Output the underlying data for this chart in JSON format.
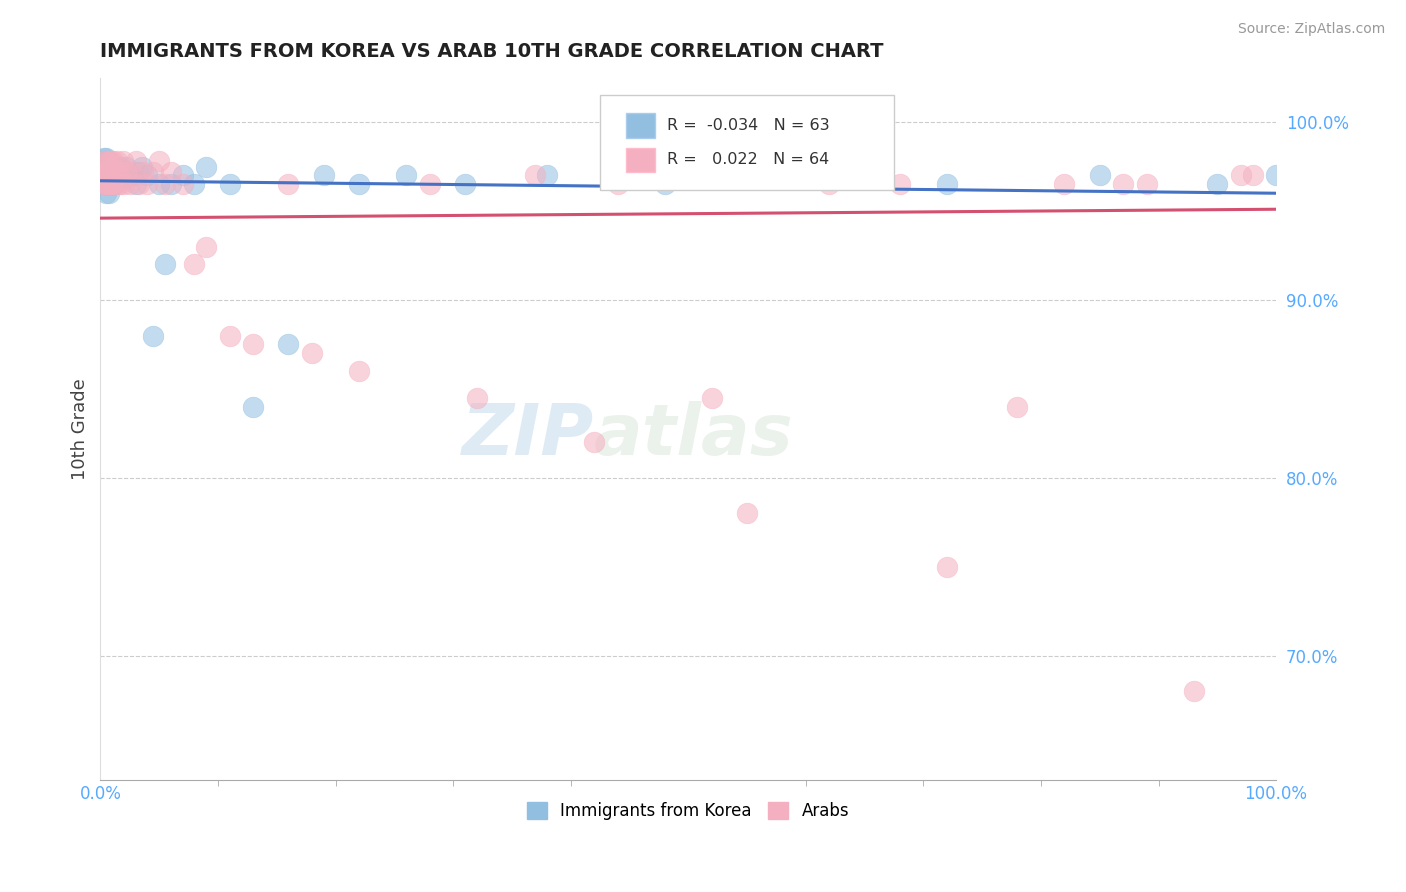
{
  "title": "IMMIGRANTS FROM KOREA VS ARAB 10TH GRADE CORRELATION CHART",
  "source": "Source: ZipAtlas.com",
  "ylabel": "10th Grade",
  "xlim": [
    0,
    1
  ],
  "ylim": [
    0.63,
    1.025
  ],
  "yticks": [
    0.7,
    0.8,
    0.9,
    1.0
  ],
  "ytick_labels": [
    "70.0%",
    "80.0%",
    "90.0%",
    "100.0%"
  ],
  "watermark_zip": "ZIP",
  "watermark_atlas": "atlas",
  "korea_R": -0.034,
  "korea_N": 63,
  "arab_R": 0.022,
  "arab_N": 64,
  "korea_color": "#92bfe0",
  "arab_color": "#f4b0c0",
  "korea_line_color": "#4472c4",
  "arab_line_color": "#d45070",
  "korea_line_start_y": 0.967,
  "korea_line_end_y": 0.96,
  "arab_line_start_y": 0.946,
  "arab_line_end_y": 0.951,
  "korea_x": [
    0.002,
    0.003,
    0.003,
    0.004,
    0.004,
    0.004,
    0.005,
    0.005,
    0.005,
    0.005,
    0.005,
    0.006,
    0.006,
    0.006,
    0.007,
    0.007,
    0.007,
    0.008,
    0.008,
    0.009,
    0.009,
    0.01,
    0.01,
    0.011,
    0.011,
    0.012,
    0.013,
    0.013,
    0.014,
    0.015,
    0.016,
    0.017,
    0.018,
    0.019,
    0.02,
    0.022,
    0.025,
    0.028,
    0.03,
    0.032,
    0.035,
    0.04,
    0.045,
    0.05,
    0.055,
    0.06,
    0.07,
    0.08,
    0.09,
    0.11,
    0.13,
    0.16,
    0.19,
    0.22,
    0.26,
    0.31,
    0.38,
    0.48,
    0.6,
    0.72,
    0.85,
    0.95,
    1.0
  ],
  "korea_y": [
    0.975,
    0.98,
    0.972,
    0.978,
    0.97,
    0.965,
    0.98,
    0.975,
    0.968,
    0.96,
    0.972,
    0.978,
    0.97,
    0.965,
    0.975,
    0.968,
    0.96,
    0.972,
    0.965,
    0.975,
    0.968,
    0.965,
    0.972,
    0.975,
    0.968,
    0.965,
    0.97,
    0.975,
    0.968,
    0.972,
    0.97,
    0.975,
    0.968,
    0.972,
    0.97,
    0.975,
    0.97,
    0.97,
    0.965,
    0.972,
    0.975,
    0.97,
    0.88,
    0.965,
    0.92,
    0.965,
    0.97,
    0.965,
    0.975,
    0.965,
    0.84,
    0.875,
    0.97,
    0.965,
    0.97,
    0.965,
    0.97,
    0.965,
    0.97,
    0.965,
    0.97,
    0.965,
    0.97
  ],
  "arab_x": [
    0.002,
    0.003,
    0.003,
    0.004,
    0.004,
    0.005,
    0.005,
    0.005,
    0.006,
    0.006,
    0.007,
    0.007,
    0.008,
    0.008,
    0.009,
    0.009,
    0.01,
    0.01,
    0.011,
    0.012,
    0.013,
    0.014,
    0.015,
    0.016,
    0.017,
    0.018,
    0.019,
    0.02,
    0.022,
    0.025,
    0.027,
    0.03,
    0.033,
    0.036,
    0.04,
    0.045,
    0.05,
    0.055,
    0.06,
    0.07,
    0.08,
    0.09,
    0.11,
    0.13,
    0.16,
    0.18,
    0.22,
    0.28,
    0.32,
    0.37,
    0.44,
    0.52,
    0.62,
    0.72,
    0.82,
    0.87,
    0.93,
    0.98,
    0.42,
    0.55,
    0.68,
    0.78,
    0.89,
    0.97
  ],
  "arab_y": [
    0.972,
    0.978,
    0.965,
    0.972,
    0.965,
    0.978,
    0.97,
    0.965,
    0.972,
    0.965,
    0.978,
    0.97,
    0.965,
    0.972,
    0.978,
    0.965,
    0.972,
    0.965,
    0.978,
    0.965,
    0.972,
    0.978,
    0.965,
    0.972,
    0.965,
    0.972,
    0.978,
    0.965,
    0.972,
    0.965,
    0.972,
    0.978,
    0.965,
    0.972,
    0.965,
    0.972,
    0.978,
    0.965,
    0.972,
    0.965,
    0.92,
    0.93,
    0.88,
    0.875,
    0.965,
    0.87,
    0.86,
    0.965,
    0.845,
    0.97,
    0.965,
    0.845,
    0.965,
    0.75,
    0.965,
    0.965,
    0.68,
    0.97,
    0.82,
    0.78,
    0.965,
    0.84,
    0.965,
    0.97
  ]
}
